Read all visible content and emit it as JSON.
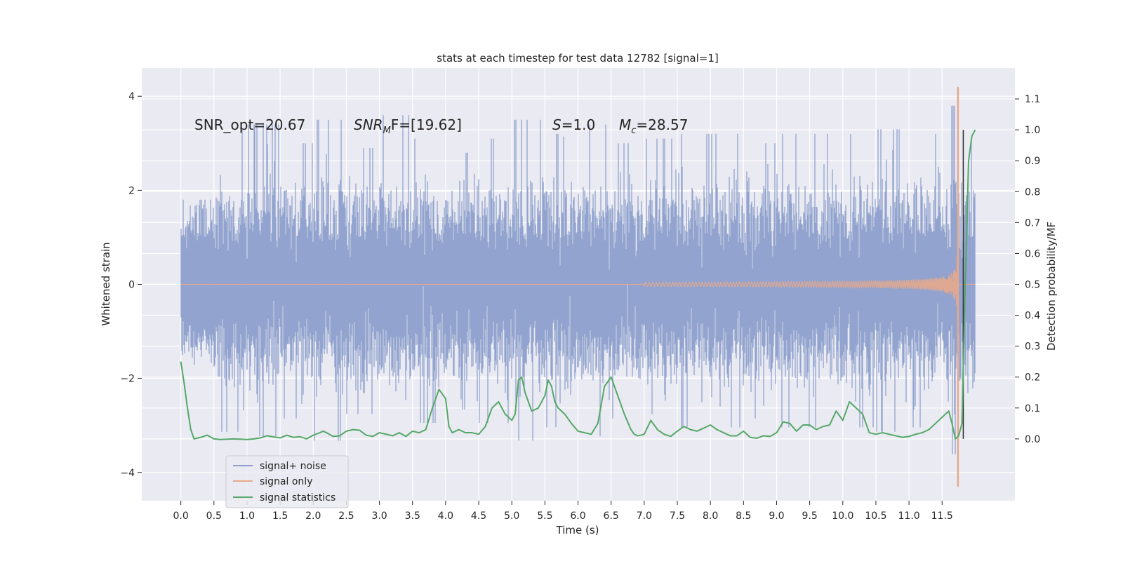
{
  "chart_data": {
    "type": "line",
    "title": "stats at each timestep for test data 12782 [signal=1]",
    "xlabel": "Time (s)",
    "ylabel_left": "Whitened strain",
    "ylabel_right": "Detection probability/MF",
    "x_ticks": [
      "0.0",
      "0.5",
      "1.0",
      "1.5",
      "2.0",
      "2.5",
      "3.0",
      "3.5",
      "4.0",
      "4.5",
      "5.0",
      "5.5",
      "6.0",
      "6.5",
      "7.0",
      "7.5",
      "8.0",
      "8.5",
      "9.0",
      "9.5",
      "10.0",
      "10.5",
      "11.0",
      "11.5"
    ],
    "y_left_ticks": [
      "4",
      "2",
      "0",
      "−2",
      "−4"
    ],
    "y_right_ticks": [
      "1.1",
      "1.0",
      "0.9",
      "0.8",
      "0.7",
      "0.6",
      "0.5",
      "0.4",
      "0.3",
      "0.2",
      "0.1",
      "0.0"
    ],
    "xlim": [
      -0.59,
      12.6
    ],
    "ylim_left": [
      -4.6,
      4.6
    ],
    "ylim_right": [
      -0.2,
      1.2
    ],
    "grid": true,
    "background": "#eaeaf2",
    "legend_position": "lower-left",
    "annotations": {
      "snr_opt": "SNR_opt=20.67",
      "snr_mf_name": "SNR",
      "snr_mf_sub": "M",
      "snr_mf_rest": "F=[19.62]",
      "s_name": "S",
      "s_rest": "=1.0",
      "mc_name": "M",
      "mc_sub": "c",
      "mc_rest": "=28.57"
    },
    "detection_marker_x": 11.82,
    "series": [
      {
        "name": "signal+ noise",
        "color": "#8c9fcb",
        "axis": "left",
        "x_range": [
          0,
          12.0
        ],
        "sigma": 1.0,
        "peak_values": [
          1.8,
          3.3,
          3.4,
          3.0,
          3.5,
          2.9,
          3.6,
          3.1,
          2.8,
          3.1,
          3.5,
          3.2,
          3.4,
          3.0,
          3.1,
          3.2,
          3.2,
          3.0,
          3.2,
          3.2,
          3.2,
          3.3,
          3.2,
          3.8
        ]
      },
      {
        "name": "signal only",
        "color": "#e8a88c",
        "axis": "left",
        "chirp_start": 7.5,
        "merger_time": 11.74,
        "peak_amplitude": 4.2,
        "min_amplitude": -4.3
      },
      {
        "name": "signal statistics",
        "color": "#55a868",
        "axis": "right",
        "x": [
          0.0,
          0.05,
          0.1,
          0.15,
          0.2,
          0.3,
          0.4,
          0.5,
          0.6,
          0.8,
          1.0,
          1.1,
          1.2,
          1.3,
          1.5,
          1.6,
          1.7,
          1.8,
          1.9,
          2.0,
          2.1,
          2.15,
          2.2,
          2.3,
          2.4,
          2.5,
          2.6,
          2.7,
          2.8,
          2.9,
          3.0,
          3.1,
          3.2,
          3.3,
          3.4,
          3.5,
          3.6,
          3.7,
          3.8,
          3.9,
          4.0,
          4.05,
          4.1,
          4.15,
          4.2,
          4.3,
          4.4,
          4.5,
          4.6,
          4.7,
          4.8,
          4.9,
          5.0,
          5.05,
          5.1,
          5.15,
          5.2,
          5.3,
          5.4,
          5.5,
          5.55,
          5.6,
          5.65,
          5.7,
          5.8,
          5.9,
          6.0,
          6.1,
          6.2,
          6.3,
          6.4,
          6.5,
          6.6,
          6.7,
          6.8,
          6.85,
          6.9,
          6.95,
          7.0,
          7.1,
          7.2,
          7.3,
          7.4,
          7.5,
          7.6,
          7.7,
          7.8,
          7.9,
          8.0,
          8.1,
          8.2,
          8.3,
          8.4,
          8.5,
          8.6,
          8.7,
          8.8,
          8.9,
          9.0,
          9.1,
          9.2,
          9.3,
          9.4,
          9.5,
          9.6,
          9.7,
          9.8,
          9.9,
          10.0,
          10.1,
          10.2,
          10.3,
          10.4,
          10.5,
          10.6,
          10.7,
          10.8,
          10.9,
          11.0,
          11.1,
          11.2,
          11.3,
          11.4,
          11.5,
          11.6,
          11.65,
          11.7,
          11.75,
          11.8,
          11.85,
          11.9,
          11.95,
          12.0
        ],
        "values": [
          0.25,
          0.18,
          0.1,
          0.03,
          0.0,
          0.005,
          0.012,
          0.0,
          -0.002,
          0.0,
          -0.002,
          0.0,
          0.003,
          0.01,
          0.003,
          0.012,
          0.005,
          0.007,
          0.0,
          0.012,
          0.02,
          0.025,
          0.02,
          0.008,
          0.01,
          0.025,
          0.03,
          0.028,
          0.012,
          0.008,
          0.02,
          0.015,
          0.01,
          0.02,
          0.008,
          0.025,
          0.02,
          0.03,
          0.1,
          0.16,
          0.13,
          0.04,
          0.02,
          0.025,
          0.03,
          0.02,
          0.02,
          0.015,
          0.04,
          0.1,
          0.12,
          0.08,
          0.06,
          0.08,
          0.19,
          0.2,
          0.15,
          0.09,
          0.1,
          0.14,
          0.19,
          0.17,
          0.12,
          0.1,
          0.08,
          0.05,
          0.025,
          0.02,
          0.015,
          0.05,
          0.17,
          0.2,
          0.14,
          0.08,
          0.03,
          0.015,
          0.01,
          0.012,
          0.015,
          0.06,
          0.03,
          0.015,
          0.008,
          0.025,
          0.04,
          0.03,
          0.025,
          0.035,
          0.045,
          0.03,
          0.02,
          0.01,
          0.01,
          0.025,
          0.005,
          0.002,
          0.01,
          0.008,
          0.02,
          0.055,
          0.05,
          0.025,
          0.045,
          0.045,
          0.03,
          0.04,
          0.045,
          0.09,
          0.06,
          0.12,
          0.1,
          0.08,
          0.02,
          0.015,
          0.02,
          0.015,
          0.01,
          0.005,
          0.008,
          0.015,
          0.02,
          0.03,
          0.05,
          0.07,
          0.09,
          0.05,
          0.0,
          0.01,
          0.05,
          0.5,
          0.9,
          0.98,
          1.0
        ]
      }
    ]
  }
}
